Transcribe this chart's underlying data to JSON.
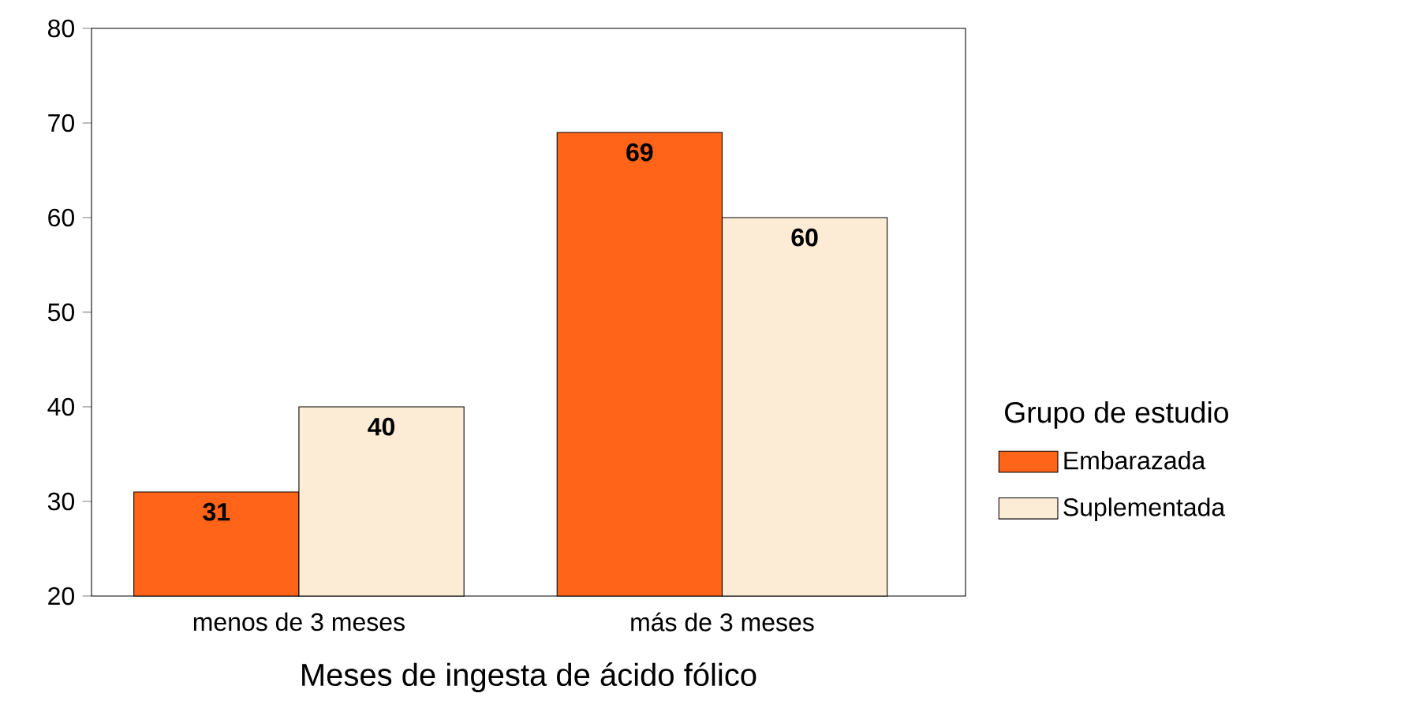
{
  "chart_data": {
    "type": "bar",
    "xlabel": "Meses de ingesta de ácido fólico",
    "legend_title": "Grupo de estudio",
    "categories": [
      "menos de 3 meses",
      "más de 3 meses"
    ],
    "series": [
      {
        "name": "Embarazada",
        "color": "#ff6418",
        "values": [
          31,
          69
        ]
      },
      {
        "name": "Suplementada",
        "color": "#fcebd5",
        "values": [
          40,
          60
        ]
      }
    ],
    "ylim": [
      20,
      80
    ],
    "yticks": [
      20,
      30,
      40,
      50,
      60,
      70,
      80
    ],
    "data_labels": true,
    "legend": "right",
    "grid": false
  }
}
